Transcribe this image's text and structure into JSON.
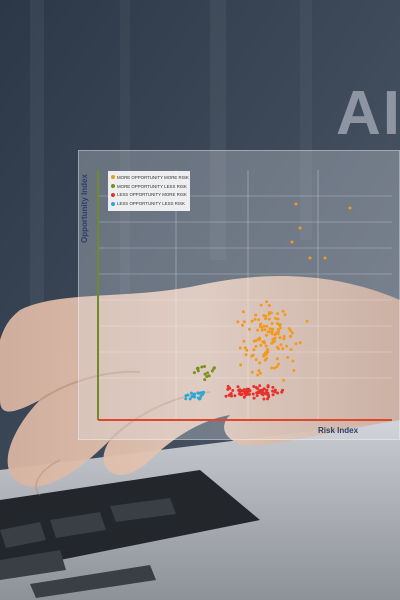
{
  "background": {
    "headline_fragment": "AI"
  },
  "chart_data": {
    "type": "scatter",
    "title": "",
    "xlabel": "Risk Index",
    "ylabel": "Opportunity Index",
    "grid": true,
    "legend_position": "top-left",
    "series": [
      {
        "name": "MORE OPPORTUNITY MORE RISK",
        "color": "#f29a1f"
      },
      {
        "name": "MORE OPPORTUNITY LESS RISK",
        "color": "#7a8f1c"
      },
      {
        "name": "LESS OPPORTUNITY MORE RISK",
        "color": "#e8312a"
      },
      {
        "name": "LESS OPPORTUNITY LESS RISK",
        "color": "#2aa6d8"
      }
    ]
  },
  "colors": {
    "y_axis": "#6f8a2a",
    "x_axis": "#e0462c",
    "axis_labels": "#2a3f6a"
  }
}
